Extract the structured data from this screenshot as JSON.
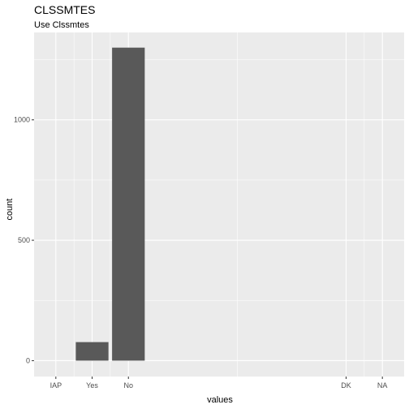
{
  "chart_data": {
    "type": "bar",
    "title": "CLSSMTES",
    "subtitle": "Use Clssmtes",
    "xlabel": "values",
    "ylabel": "count",
    "x_tick_labels": [
      "IAP",
      "Yes",
      "No",
      "DK",
      "NA"
    ],
    "x_tick_positions": [
      1,
      2,
      3,
      9,
      10
    ],
    "xlim": [
      0.4,
      10.6
    ],
    "ylim": [
      -66,
      1363
    ],
    "y_ticks": [
      0,
      500,
      1000
    ],
    "y_tick_labels": [
      "0",
      "500",
      "1000"
    ],
    "bars": [
      {
        "category": "Yes",
        "x": 2,
        "value": 77
      },
      {
        "category": "No",
        "x": 3,
        "value": 1300
      }
    ],
    "grid": true,
    "legend": "none"
  },
  "colors": {
    "panel_background": "#ebebeb",
    "grid": "#ffffff",
    "bar_fill": "#595959",
    "tick_text": "#4d4d4d",
    "text": "#000000"
  }
}
